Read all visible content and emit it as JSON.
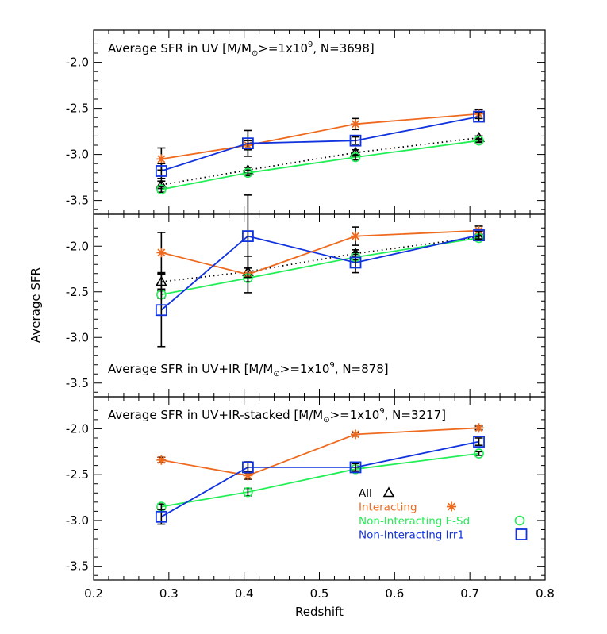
{
  "chart_data": {
    "type": "line",
    "xlabel": "Redshift",
    "ylabel": "Average SFR",
    "xlim": [
      0.2,
      0.8
    ],
    "ylim": [
      -3.65,
      -1.65
    ],
    "x_ticks": [
      "0.2",
      "0.3",
      "0.4",
      "0.5",
      "0.6",
      "0.7",
      "0.8"
    ],
    "y_ticks": [
      "-2.0",
      "-2.5",
      "-3.0",
      "-3.5"
    ],
    "colors": {
      "all": "#000000",
      "interacting": "#ee6a1f",
      "non_interacting_esd": "#22ee55",
      "non_interacting_irr1": "#1133dd"
    },
    "legend": [
      {
        "key": "all",
        "label": "All",
        "marker": "triangle"
      },
      {
        "key": "interacting",
        "label": "Interacting",
        "marker": "asterisk"
      },
      {
        "key": "non_interacting_esd",
        "label": "Non-Interacting E-Sd",
        "marker": "circle"
      },
      {
        "key": "non_interacting_irr1",
        "label": "Non-Interacting Irr1",
        "marker": "square"
      }
    ],
    "panels": [
      {
        "title": {
          "prefix": "Average SFR in UV [M/M",
          "sub": "⊙",
          "mid": ">=1x10",
          "sup": "9",
          "suffix": ", N=3698]"
        },
        "series": [
          {
            "key": "all",
            "x": [
              0.29,
              0.405,
              0.548,
              0.712
            ],
            "y": [
              -3.33,
              -3.17,
              -2.98,
              -2.82
            ],
            "err": [
              0.04,
              0.03,
              0.03,
              0.02
            ]
          },
          {
            "key": "interacting",
            "x": [
              0.29,
              0.405,
              0.548,
              0.712
            ],
            "y": [
              -3.05,
              -2.9,
              -2.67,
              -2.56
            ],
            "err": [
              0.12,
              0.05,
              0.06,
              0.05
            ]
          },
          {
            "key": "non_interacting_esd",
            "x": [
              0.29,
              0.405,
              0.548,
              0.712
            ],
            "y": [
              -3.38,
              -3.2,
              -3.03,
              -2.85
            ],
            "err": [
              0.03,
              0.03,
              0.03,
              0.02
            ]
          },
          {
            "key": "non_interacting_irr1",
            "x": [
              0.29,
              0.405,
              0.548,
              0.712
            ],
            "y": [
              -3.18,
              -2.88,
              -2.85,
              -2.59
            ],
            "err": [
              0.08,
              0.14,
              0.04,
              0.05
            ]
          }
        ]
      },
      {
        "title": {
          "prefix": "Average SFR in UV+IR [M/M",
          "sub": "⊙",
          "mid": ">=1x10",
          "sup": "9",
          "suffix": ", N=878]"
        },
        "series": [
          {
            "key": "all",
            "x": [
              0.29,
              0.405,
              0.548,
              0.712
            ],
            "y": [
              -2.39,
              -2.28,
              -2.08,
              -1.9
            ],
            "err": [
              0.08,
              0.04,
              0.04,
              0.03
            ]
          },
          {
            "key": "interacting",
            "x": [
              0.29,
              0.405,
              0.548,
              0.712
            ],
            "y": [
              -2.07,
              -2.31,
              -1.89,
              -1.83
            ],
            "err": [
              0.22,
              0.2,
              0.1,
              0.05
            ]
          },
          {
            "key": "non_interacting_esd",
            "x": [
              0.29,
              0.405,
              0.548,
              0.712
            ],
            "y": [
              -2.53,
              -2.35,
              -2.12,
              -1.91
            ],
            "err": [
              0.04,
              0.04,
              0.03,
              0.02
            ]
          },
          {
            "key": "non_interacting_irr1",
            "x": [
              0.29,
              0.405,
              0.548,
              0.712
            ],
            "y": [
              -2.7,
              -1.89,
              -2.18,
              -1.88
            ],
            "err": [
              0.4,
              0.45,
              0.11,
              0.04
            ]
          }
        ]
      },
      {
        "title": {
          "prefix": "Average SFR in UV+IR-stacked [M/M",
          "sub": "⊙",
          "mid": ">=1x10",
          "sup": "9",
          "suffix": ", N=3217]"
        },
        "series": [
          {
            "key": "interacting",
            "x": [
              0.29,
              0.405,
              0.548,
              0.712
            ],
            "y": [
              -2.34,
              -2.51,
              -2.06,
              -1.99
            ],
            "err": [
              0.03,
              0.04,
              0.02,
              0.02
            ]
          },
          {
            "key": "non_interacting_esd",
            "x": [
              0.29,
              0.405,
              0.548,
              0.712
            ],
            "y": [
              -2.85,
              -2.69,
              -2.44,
              -2.27
            ],
            "err": [
              0.03,
              0.04,
              0.02,
              0.02
            ]
          },
          {
            "key": "non_interacting_irr1",
            "x": [
              0.29,
              0.405,
              0.548,
              0.712
            ],
            "y": [
              -2.96,
              -2.42,
              -2.42,
              -2.14
            ],
            "err": [
              0.08,
              0.06,
              0.04,
              0.04
            ]
          }
        ]
      }
    ]
  }
}
